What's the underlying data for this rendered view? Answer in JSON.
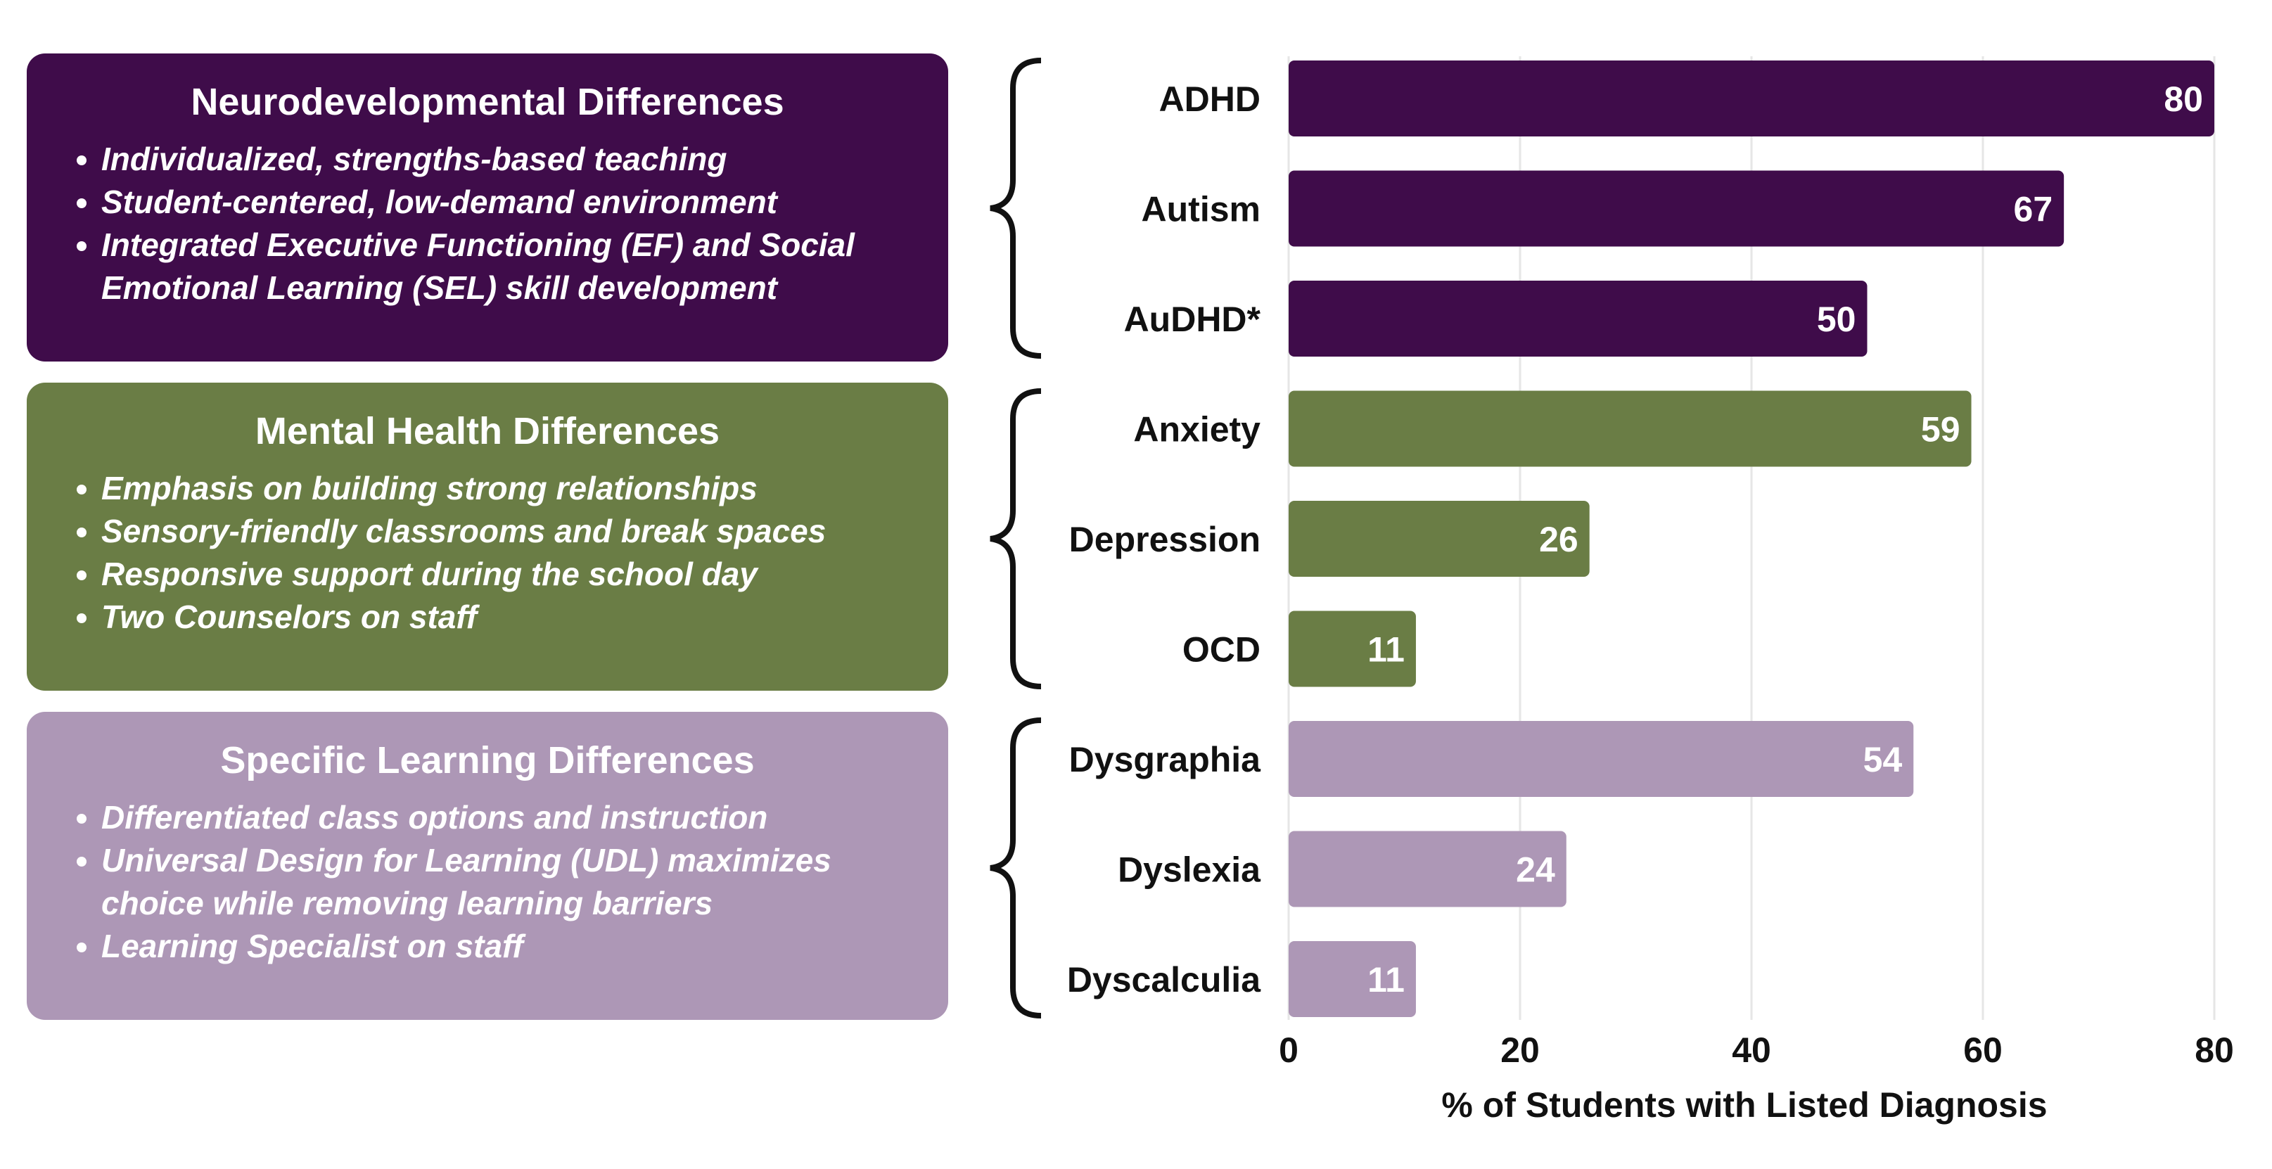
{
  "panels": [
    {
      "title": "Neurodevelopmental Differences",
      "color": "#3f0c4a",
      "bullets": [
        "Individualized, strengths-based teaching",
        "Student-centered, low-demand environment",
        "Integrated Executive Functioning (EF) and Social Emotional Learning (SEL) skill development"
      ]
    },
    {
      "title": "Mental Health Differences",
      "color": "#6a7d45",
      "bullets": [
        "Emphasis on building strong relationships",
        "Sensory-friendly classrooms and break spaces",
        "Responsive support during the school day",
        "Two Counselors on staff"
      ]
    },
    {
      "title": "Specific Learning Differences",
      "color": "#ad97b6",
      "bullets": [
        "Differentiated class options and instruction",
        "Universal Design for Learning (UDL) maximizes choice while removing learning barriers",
        "Learning Specialist on staff"
      ]
    }
  ],
  "chart_data": {
    "type": "bar",
    "orientation": "horizontal",
    "categories": [
      "ADHD",
      "Autism",
      "AuDHD*",
      "Anxiety",
      "Depression",
      "OCD",
      "Dysgraphia",
      "Dyslexia",
      "Dyscalculia"
    ],
    "values": [
      80,
      67,
      50,
      59,
      26,
      11,
      54,
      24,
      11
    ],
    "groups": [
      0,
      0,
      0,
      1,
      1,
      1,
      2,
      2,
      2
    ],
    "group_colors": [
      "#3f0c4a",
      "#6a7d45",
      "#ad97b6"
    ],
    "xlabel": "% of Students with Listed Diagnosis",
    "xlim": [
      0,
      80
    ],
    "xticks": [
      0,
      20,
      40,
      60,
      80
    ],
    "grid": "vertical"
  }
}
